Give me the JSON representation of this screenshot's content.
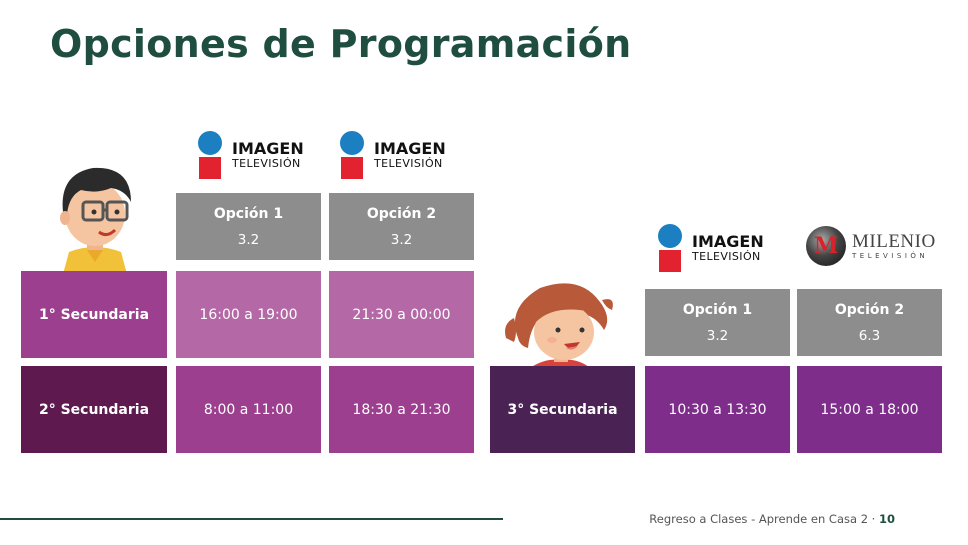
{
  "title": "Opciones de Programación",
  "colors": {
    "title": "#1f4d40",
    "header_gray": "#8e8d8d",
    "row1_label": "#9b3f8e",
    "row1_cells": "#b468a6",
    "row2_label": "#5e1a4e",
    "row2_cells": "#9b3f8e",
    "row3_label": "#4a2354",
    "row3_cells": "#7e2d8b"
  },
  "logos": {
    "imagen_line1": "IMAGEN",
    "imagen_line2": "TELEVISIÓN",
    "milenio_line1": "MILENIO",
    "milenio_line2": "TELEVISIÓN",
    "milenio_mark": "M"
  },
  "table_left": {
    "headers": [
      {
        "label": "Opción 1",
        "channel": "3.2"
      },
      {
        "label": "Opción 2",
        "channel": "3.2"
      }
    ],
    "rows": [
      {
        "grade": "1° Secundaria",
        "times": [
          "16:00 a 19:00",
          "21:30 a 00:00"
        ]
      },
      {
        "grade": "2° Secundaria",
        "times": [
          "8:00 a 11:00",
          "18:30 a 21:30"
        ]
      }
    ]
  },
  "table_right": {
    "headers": [
      {
        "label": "Opción 1",
        "channel": "3.2"
      },
      {
        "label": "Opción 2",
        "channel": "6.3"
      }
    ],
    "rows": [
      {
        "grade": "3° Secundaria",
        "times": [
          "10:30 a 13:30",
          "15:00 a 18:00"
        ]
      }
    ]
  },
  "footer": {
    "text": "Regreso a Clases - Aprende en Casa 2 · ",
    "page": "10"
  }
}
